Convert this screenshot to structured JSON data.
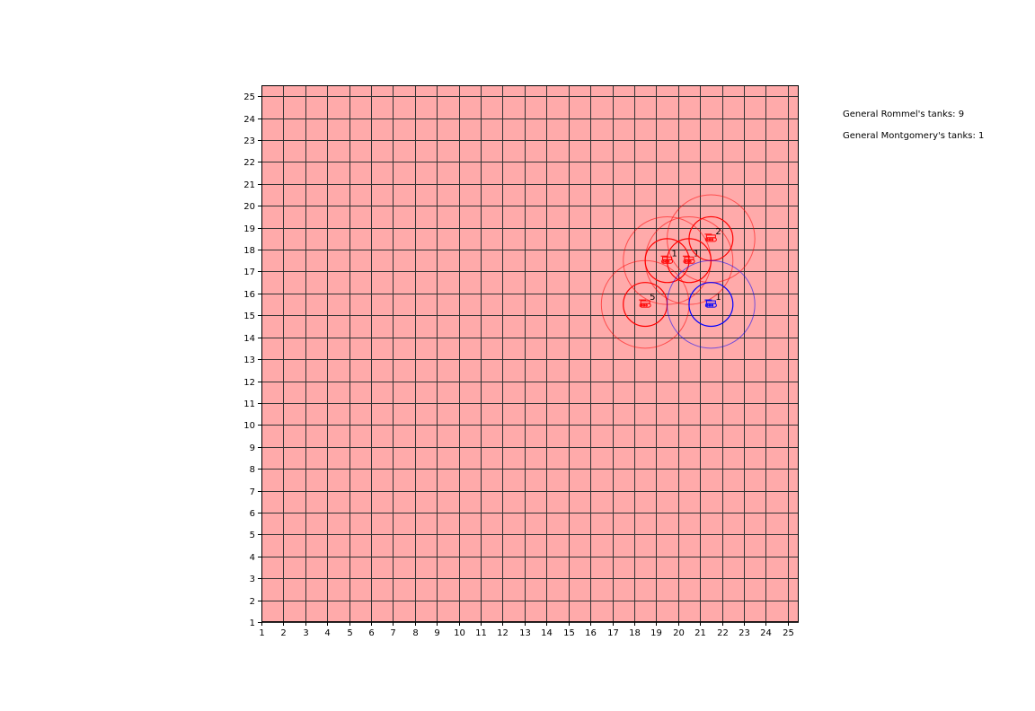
{
  "board": {
    "x_ticks": [
      1,
      2,
      3,
      4,
      5,
      6,
      7,
      8,
      9,
      10,
      11,
      12,
      13,
      14,
      15,
      16,
      17,
      18,
      19,
      20,
      21,
      22,
      23,
      24,
      25
    ],
    "y_ticks": [
      1,
      2,
      3,
      4,
      5,
      6,
      7,
      8,
      9,
      10,
      11,
      12,
      13,
      14,
      15,
      16,
      17,
      18,
      19,
      20,
      21,
      22,
      23,
      24,
      25
    ],
    "x_range": [
      1,
      25.5
    ],
    "y_range": [
      1,
      25.5
    ],
    "grid": true,
    "background_color": "#ffaaaa",
    "grid_color": "#333333"
  },
  "units": [
    {
      "side": "red",
      "x": 18.5,
      "y": 15.5,
      "count_label": "5",
      "color": "#ff0000",
      "inner_radius": 1,
      "outer_radius": 2
    },
    {
      "side": "red",
      "x": 19.5,
      "y": 17.5,
      "count_label": "1",
      "color": "#ff0000",
      "inner_radius": 1,
      "outer_radius": 2
    },
    {
      "side": "red",
      "x": 20.5,
      "y": 17.5,
      "count_label": "1",
      "color": "#ff0000",
      "inner_radius": 1,
      "outer_radius": 2
    },
    {
      "side": "red",
      "x": 21.5,
      "y": 18.5,
      "count_label": "2",
      "color": "#ff0000",
      "inner_radius": 1,
      "outer_radius": 2
    },
    {
      "side": "blue",
      "x": 21.5,
      "y": 15.5,
      "count_label": "1",
      "color": "#0000ff",
      "inner_radius": 1,
      "outer_radius": 2
    }
  ],
  "status": {
    "rommel": "General Rommel's tanks: 9",
    "montgomery": "General Montgomery's tanks: 1"
  }
}
